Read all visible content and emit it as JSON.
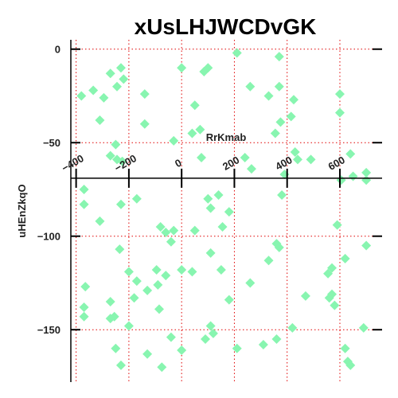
{
  "chart_data": {
    "type": "scatter",
    "title": "xUsLHJWCDvGK",
    "xlabel": "RrKmab",
    "ylabel": "uHEnZkqO",
    "xlim": [
      -420,
      760
    ],
    "ylim": [
      -178,
      5
    ],
    "x_ticks": [
      -400,
      -200,
      0,
      200,
      400,
      600
    ],
    "x_tick_labels": [
      "−400",
      "−200",
      "0",
      "200",
      "400",
      "600"
    ],
    "y_ticks": [
      0,
      -50,
      -100,
      -150
    ],
    "y_tick_labels": [
      "0",
      "−50",
      "−100",
      "−150"
    ],
    "x_axis_at_y": -69,
    "grid": true,
    "grid_color": "#e00000",
    "marker": "diamond",
    "color": "#88f5b0",
    "points": [
      [
        -380,
        -25
      ],
      [
        -335,
        -22
      ],
      [
        -295,
        -26
      ],
      [
        -310,
        -38
      ],
      [
        -270,
        -13
      ],
      [
        -245,
        -20
      ],
      [
        -230,
        -10
      ],
      [
        -220,
        -16
      ],
      [
        -270,
        -57
      ],
      [
        -245,
        -59
      ],
      [
        -225,
        -60
      ],
      [
        -250,
        -51
      ],
      [
        -140,
        -24
      ],
      [
        -140,
        -40
      ],
      [
        -30,
        -49
      ],
      [
        0,
        -10
      ],
      [
        50,
        -30
      ],
      [
        40,
        -45
      ],
      [
        70,
        -43
      ],
      [
        75,
        -58
      ],
      [
        85,
        -12
      ],
      [
        100,
        -10
      ],
      [
        210,
        -2
      ],
      [
        260,
        -20
      ],
      [
        265,
        -64
      ],
      [
        240,
        -58
      ],
      [
        330,
        -25
      ],
      [
        355,
        -45
      ],
      [
        370,
        -4
      ],
      [
        370,
        -20
      ],
      [
        375,
        -39
      ],
      [
        390,
        -67
      ],
      [
        415,
        -36
      ],
      [
        425,
        -27
      ],
      [
        430,
        -55
      ],
      [
        440,
        -59
      ],
      [
        490,
        -59
      ],
      [
        600,
        -24
      ],
      [
        600,
        -34
      ],
      [
        605,
        -70
      ],
      [
        640,
        -56
      ],
      [
        650,
        -68
      ],
      [
        700,
        -66
      ],
      [
        700,
        -70
      ],
      [
        -370,
        -75
      ],
      [
        -370,
        -83
      ],
      [
        -310,
        -92
      ],
      [
        -230,
        -83
      ],
      [
        -170,
        -80
      ],
      [
        -80,
        -95
      ],
      [
        -60,
        -98
      ],
      [
        -40,
        -103
      ],
      [
        -30,
        -97
      ],
      [
        50,
        -97
      ],
      [
        100,
        -80
      ],
      [
        110,
        -85
      ],
      [
        140,
        -78
      ],
      [
        155,
        -95
      ],
      [
        180,
        -87
      ],
      [
        380,
        -78
      ],
      [
        -235,
        -107
      ],
      [
        -200,
        -119
      ],
      [
        -170,
        -124
      ],
      [
        -130,
        -129
      ],
      [
        -90,
        -126
      ],
      [
        -95,
        -118
      ],
      [
        -60,
        -121
      ],
      [
        0,
        -118
      ],
      [
        40,
        -119
      ],
      [
        110,
        -109
      ],
      [
        150,
        -118
      ],
      [
        260,
        -125
      ],
      [
        330,
        -113
      ],
      [
        360,
        -104
      ],
      [
        370,
        -106
      ],
      [
        470,
        -132
      ],
      [
        555,
        -120
      ],
      [
        570,
        -117
      ],
      [
        590,
        -94
      ],
      [
        620,
        -112
      ],
      [
        -365,
        -127
      ],
      [
        -370,
        -138
      ],
      [
        -370,
        -143
      ],
      [
        -270,
        -135
      ],
      [
        -255,
        -143
      ],
      [
        -270,
        -144
      ],
      [
        -200,
        -148
      ],
      [
        -180,
        -133
      ],
      [
        -85,
        -139
      ],
      [
        -40,
        -154
      ],
      [
        180,
        -134
      ],
      [
        110,
        -148
      ],
      [
        120,
        -152
      ],
      [
        560,
        -133
      ],
      [
        570,
        -131
      ],
      [
        580,
        -137
      ],
      [
        700,
        -105
      ],
      [
        690,
        -149
      ],
      [
        -250,
        -160
      ],
      [
        -230,
        -169
      ],
      [
        -130,
        -163
      ],
      [
        -75,
        -170
      ],
      [
        0,
        -161
      ],
      [
        90,
        -155
      ],
      [
        210,
        -160
      ],
      [
        310,
        -158
      ],
      [
        360,
        -155
      ],
      [
        420,
        -149
      ],
      [
        620,
        -160
      ],
      [
        630,
        -167
      ],
      [
        640,
        -169
      ]
    ]
  }
}
